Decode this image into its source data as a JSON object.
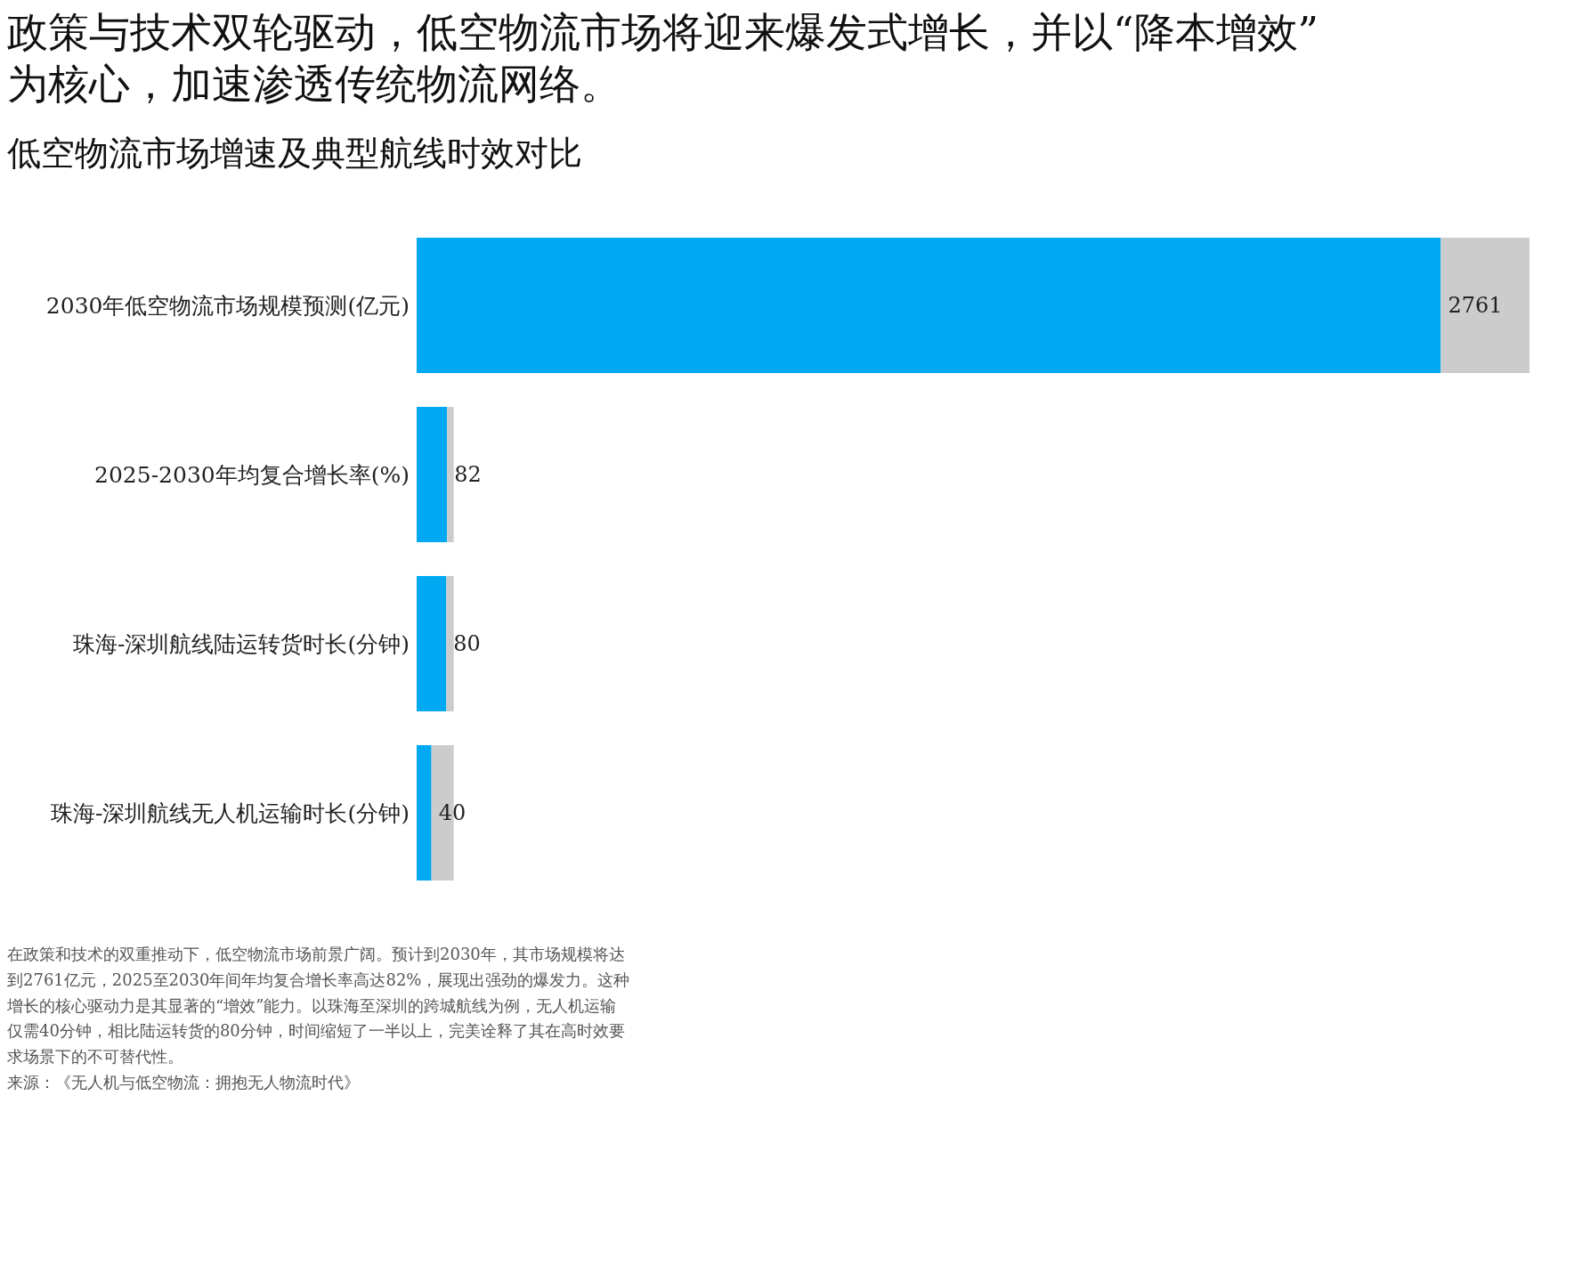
{
  "chart_data": {
    "type": "bar",
    "orientation": "horizontal",
    "stacked": true,
    "title": "政策与技术双轮驱动，低空物流市场将迎来爆发式增长，并以“降本增效”\n为核心，加速渗透传统物流网络。",
    "subtitle": "低空物流市场增速及典型航线时效对比",
    "categories": [
      "2030年低空物流市场规模预测(亿元)",
      "2025-2030年均复合增长率(%)",
      "珠海-深圳航线陆运转货时长(分钟)",
      "珠海-深圳航线无人机运输时长(分钟)"
    ],
    "series": [
      {
        "color": "#00a9f1",
        "values": [
          2761,
          82,
          80,
          40
        ],
        "value_labels": [
          "2761",
          "82",
          "80",
          "40"
        ]
      },
      {
        "color": "#cccccc",
        "values": [
          239,
          18,
          20,
          60
        ]
      }
    ],
    "xlim": [
      0,
      3000
    ],
    "tick_labels": "y",
    "legend": false,
    "grid": false,
    "annotations": [
      "在政策和技术的双重推动下，低空物流市场前景广阔。预计到2030年，其市场规模将达到2761亿元，2025至2030年间年均复合增长率高达82%，展现出强劲的爆发力。这种增长的核心驱动力是其显著的“增效”能力。以珠海至深圳的跨城航线为例，无人机运输仅需40分钟，相比陆运转货的80分钟，时间缩短了一半以上，完美诠释了其在高时效要求场景下的不可替代性。",
      "来源：《无人机与低空物流：拥抱无人物流时代》"
    ]
  }
}
